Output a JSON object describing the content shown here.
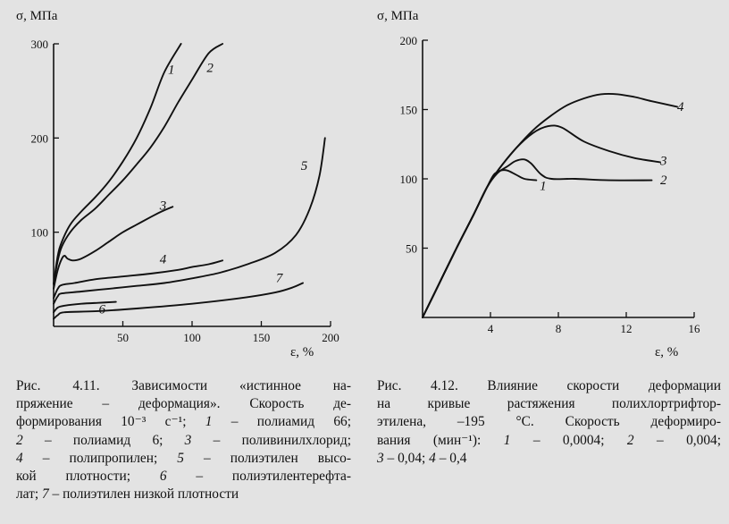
{
  "chart_data": [
    {
      "id": "fig1",
      "type": "line",
      "ylabel": "σ, МПа",
      "xlabel": "ε, %",
      "xlim": [
        0,
        200
      ],
      "ylim": [
        0,
        300
      ],
      "xticks": [
        50,
        100,
        150,
        200
      ],
      "yticks": [
        100,
        200,
        300
      ],
      "series": [
        {
          "name": "1",
          "points": [
            [
              0,
              45
            ],
            [
              3,
              75
            ],
            [
              6,
              90
            ],
            [
              12,
              108
            ],
            [
              20,
              122
            ],
            [
              30,
              137
            ],
            [
              40,
              154
            ],
            [
              50,
              175
            ],
            [
              60,
              200
            ],
            [
              70,
              232
            ],
            [
              80,
              270
            ],
            [
              92,
              300
            ]
          ]
        },
        {
          "name": "2",
          "points": [
            [
              0,
              45
            ],
            [
              3,
              70
            ],
            [
              6,
              85
            ],
            [
              12,
              100
            ],
            [
              20,
              113
            ],
            [
              30,
              125
            ],
            [
              40,
              140
            ],
            [
              50,
              155
            ],
            [
              60,
              172
            ],
            [
              70,
              190
            ],
            [
              80,
              212
            ],
            [
              90,
              238
            ],
            [
              100,
              262
            ],
            [
              112,
              290
            ],
            [
              122,
              300
            ]
          ]
        },
        {
          "name": "3",
          "points": [
            [
              0,
              40
            ],
            [
              3,
              60
            ],
            [
              6,
              72
            ],
            [
              8,
              75
            ],
            [
              10,
              72
            ],
            [
              14,
              70
            ],
            [
              20,
              72
            ],
            [
              30,
              80
            ],
            [
              40,
              90
            ],
            [
              50,
              100
            ],
            [
              60,
              108
            ],
            [
              70,
              116
            ],
            [
              78,
              122
            ],
            [
              86,
              127
            ]
          ]
        },
        {
          "name": "4",
          "points": [
            [
              0,
              30
            ],
            [
              3,
              40
            ],
            [
              6,
              44
            ],
            [
              15,
              46
            ],
            [
              30,
              50
            ],
            [
              50,
              53
            ],
            [
              70,
              56
            ],
            [
              90,
              60
            ],
            [
              100,
              63
            ],
            [
              112,
              66
            ],
            [
              122,
              70
            ]
          ]
        },
        {
          "name": "5",
          "points": [
            [
              0,
              24
            ],
            [
              3,
              32
            ],
            [
              6,
              35
            ],
            [
              20,
              37
            ],
            [
              40,
              40
            ],
            [
              60,
              43
            ],
            [
              80,
              46
            ],
            [
              100,
              51
            ],
            [
              120,
              57
            ],
            [
              140,
              66
            ],
            [
              160,
              78
            ],
            [
              175,
              97
            ],
            [
              185,
              125
            ],
            [
              192,
              160
            ],
            [
              196,
              200
            ]
          ]
        },
        {
          "name": "6",
          "points": [
            [
              0,
              15
            ],
            [
              3,
              20
            ],
            [
              8,
              22
            ],
            [
              20,
              24
            ],
            [
              32,
              25
            ],
            [
              45,
              26
            ]
          ]
        },
        {
          "name": "7",
          "points": [
            [
              0,
              8
            ],
            [
              3,
              12
            ],
            [
              8,
              15
            ],
            [
              30,
              16
            ],
            [
              60,
              19
            ],
            [
              100,
              24
            ],
            [
              140,
              31
            ],
            [
              160,
              36
            ],
            [
              172,
              41
            ],
            [
              180,
              46
            ]
          ]
        }
      ],
      "labels": [
        {
          "text": "1",
          "at": [
            85,
            268
          ]
        },
        {
          "text": "2",
          "at": [
            113,
            270
          ]
        },
        {
          "text": "3",
          "at": [
            79,
            124
          ]
        },
        {
          "text": "4",
          "at": [
            79,
            67
          ]
        },
        {
          "text": "5",
          "at": [
            181,
            166
          ]
        },
        {
          "text": "6",
          "at": [
            35,
            14
          ]
        },
        {
          "text": "7",
          "at": [
            163,
            47
          ]
        }
      ]
    },
    {
      "id": "fig2",
      "type": "line",
      "ylabel": "σ, МПа",
      "xlabel": "ε, %",
      "xlim": [
        0,
        16
      ],
      "ylim": [
        0,
        200
      ],
      "xticks": [
        4,
        8,
        12,
        16
      ],
      "yticks": [
        50,
        100,
        150,
        200
      ],
      "series": [
        {
          "name": "1",
          "points": [
            [
              0,
              0
            ],
            [
              1,
              25
            ],
            [
              2,
              50
            ],
            [
              3,
              74
            ],
            [
              3.8,
              94
            ],
            [
              4.2,
              103
            ],
            [
              4.6,
              106
            ],
            [
              5,
              106
            ],
            [
              5.5,
              103
            ],
            [
              6,
              100
            ],
            [
              6.7,
              99
            ]
          ]
        },
        {
          "name": "2",
          "points": [
            [
              0,
              0
            ],
            [
              1,
              25
            ],
            [
              2,
              50
            ],
            [
              3,
              74
            ],
            [
              3.8,
              94
            ],
            [
              4.4,
              104
            ],
            [
              5,
              109
            ],
            [
              5.5,
              113
            ],
            [
              6,
              114
            ],
            [
              6.4,
              111
            ],
            [
              7,
              103
            ],
            [
              7.6,
              100
            ],
            [
              9,
              100
            ],
            [
              11,
              99
            ],
            [
              13.5,
              99
            ]
          ]
        },
        {
          "name": "3",
          "points": [
            [
              0,
              0
            ],
            [
              1,
              25
            ],
            [
              2,
              50
            ],
            [
              3,
              74
            ],
            [
              3.8,
              94
            ],
            [
              4.5,
              107
            ],
            [
              5.5,
              122
            ],
            [
              6.5,
              133
            ],
            [
              7.4,
              138
            ],
            [
              8.2,
              137
            ],
            [
              9.5,
              127
            ],
            [
              11,
              120
            ],
            [
              12.5,
              115
            ],
            [
              14,
              112
            ]
          ]
        },
        {
          "name": "4",
          "points": [
            [
              0,
              0
            ],
            [
              1,
              25
            ],
            [
              2,
              50
            ],
            [
              3,
              74
            ],
            [
              3.8,
              94
            ],
            [
              4.5,
              107
            ],
            [
              5.5,
              122
            ],
            [
              6.5,
              135
            ],
            [
              7.5,
              145
            ],
            [
              8.5,
              153
            ],
            [
              9.5,
              158
            ],
            [
              10.5,
              161
            ],
            [
              11.5,
              161
            ],
            [
              12.5,
              159
            ],
            [
              13.5,
              156
            ],
            [
              15,
              152
            ]
          ]
        }
      ],
      "labels": [
        {
          "text": "1",
          "at": [
            7.1,
            92
          ]
        },
        {
          "text": "2",
          "at": [
            14.2,
            96
          ]
        },
        {
          "text": "3",
          "at": [
            14.2,
            110
          ]
        },
        {
          "text": "4",
          "at": [
            15.2,
            149
          ]
        }
      ]
    }
  ],
  "captions": {
    "fig1": {
      "lines": [
        [
          "Рис. 4.11. Зависимости «истинное на-"
        ],
        [
          "пряжение – деформация». Скорость де-"
        ],
        [
          "формирования 10⁻³ с⁻¹; ",
          {
            "i": "1"
          },
          " – полиамид 66;"
        ],
        [
          {
            "i": "2"
          },
          " – полиамид 6; ",
          {
            "i": "3"
          },
          " – поливинилхлорид;"
        ],
        [
          {
            "i": "4"
          },
          " – полипропилен; ",
          {
            "i": "5"
          },
          " – полиэтилен высо-"
        ],
        [
          "кой плотности; ",
          {
            "i": "6"
          },
          " – полиэтилентерефта-"
        ],
        [
          "лат; ",
          {
            "i": "7"
          },
          " – полиэтилен низкой плотности"
        ]
      ]
    },
    "fig2": {
      "lines": [
        [
          "Рис. 4.12. Влияние скорости деформации"
        ],
        [
          "на кривые растяжения полихлортрифтор-"
        ],
        [
          "этилена, –195 °С. Скорость деформиро-"
        ],
        [
          "вания (мин⁻¹): ",
          {
            "i": "1"
          },
          " – 0,0004; ",
          {
            "i": "2"
          },
          " – 0,004;"
        ],
        [
          {
            "i": "3"
          },
          " – 0,04; ",
          {
            "i": "4"
          },
          " – 0,4"
        ]
      ]
    }
  }
}
